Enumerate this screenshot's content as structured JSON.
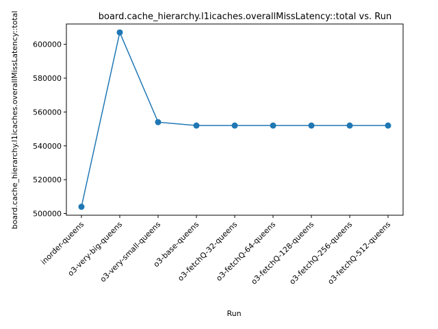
{
  "chart_data": {
    "type": "line",
    "title": "board.cache_hierarchy.l1icaches.overallMissLatency::total vs. Run",
    "xlabel": "Run",
    "ylabel": "board.cache_hierarchy.l1icaches.overallMissLatency::total",
    "categories": [
      "inorder-queens",
      "o3-very-big-queens",
      "o3-very-small-queens",
      "o3-base-queens",
      "o3-fetchQ-32-queens",
      "o3-fetchQ-64-queens",
      "o3-fetchQ-128-queens",
      "o3-fetchQ-256-queens",
      "o3-fetchQ-512-queens"
    ],
    "series": [
      {
        "values": [
          504000,
          607000,
          554000,
          552000,
          552000,
          552000,
          552000,
          552000,
          552000
        ],
        "color": "#1f77b4",
        "marker": "circle"
      }
    ],
    "yticks": [
      500000,
      520000,
      540000,
      560000,
      580000,
      600000
    ],
    "ytick_labels": [
      "500000",
      "520000",
      "540000",
      "560000",
      "580000",
      "600000"
    ],
    "ylim": [
      499000,
      612000
    ],
    "grid": false,
    "legend": false
  }
}
